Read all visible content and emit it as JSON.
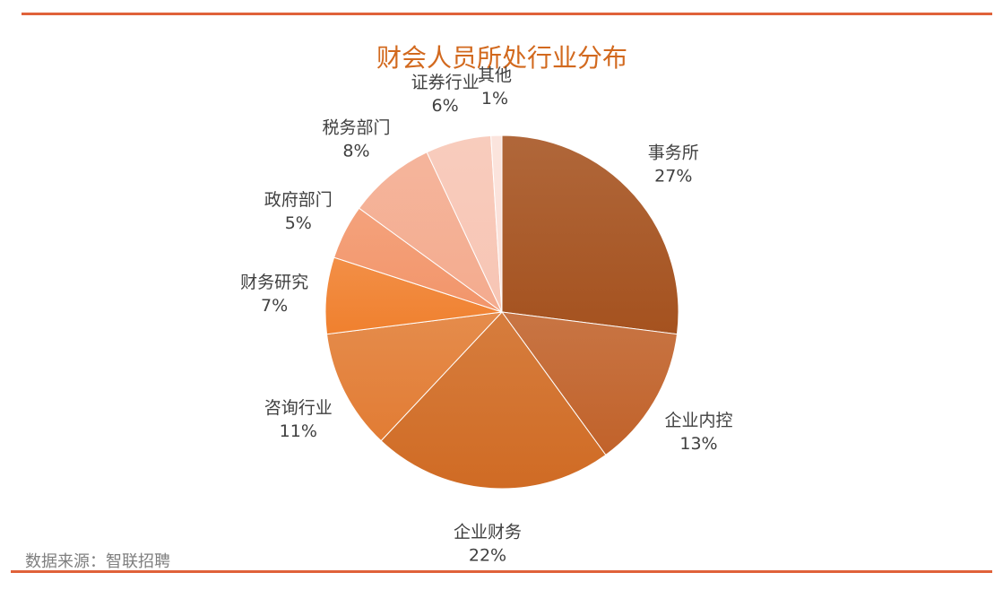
{
  "page": {
    "source": "数据来源：智联招聘"
  },
  "chart_data": {
    "type": "pie",
    "title": "财会人员所处行业分布",
    "categories": [
      "事务所",
      "企业内控",
      "企业财务",
      "咨询行业",
      "财务研究",
      "政府部门",
      "税务部门",
      "证券行业",
      "其他"
    ],
    "values": [
      27,
      13,
      22,
      11,
      7,
      5,
      8,
      6,
      1
    ],
    "value_labels": [
      "27%",
      "13%",
      "22%",
      "11%",
      "7%",
      "5%",
      "8%",
      "6%",
      "1%"
    ],
    "colors": [
      "#a5521f",
      "#c1622a",
      "#d06b24",
      "#e27c34",
      "#f0802e",
      "#f2956a",
      "#f4ab8e",
      "#f7c5b4",
      "#fbe0d8"
    ],
    "legend": "none"
  }
}
